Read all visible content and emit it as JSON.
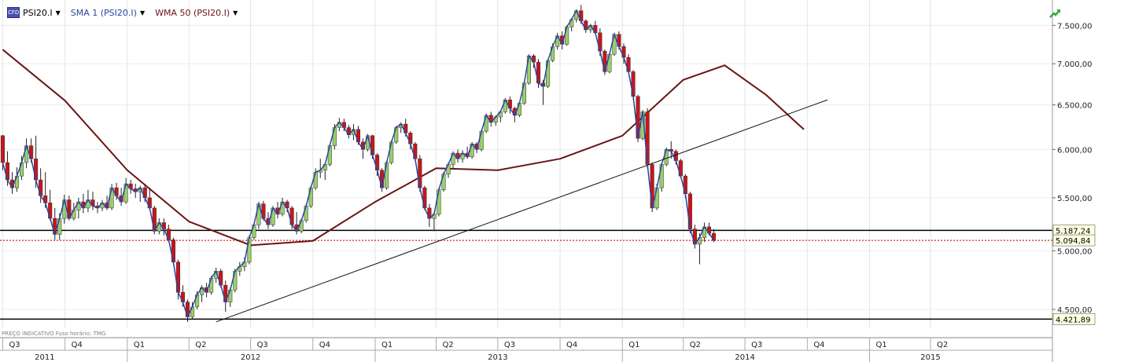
{
  "header": {
    "symbol": "PSI20.I",
    "indicator1": "SMA 1 (PSI20.I)",
    "indicator2": "WMA 50 (PSI20.I)",
    "symbol_icon": "chart-symbol-icon",
    "dropdown_icon": "triangle-down-icon",
    "trend_icon": "trend-up-arrow-icon"
  },
  "footnote": "PREÇO INDICATIVO   Fuso horário: TMG",
  "colors": {
    "up": "#98d06a",
    "down": "#c8151b",
    "sma": "#2a45a0",
    "wma": "#6b1414",
    "level_line": "#000000",
    "last_line": "#e02020"
  },
  "chart_data": {
    "type": "candlestick",
    "y_scale": "log",
    "ylim": [
      4350,
      7850
    ],
    "y_ticks": [
      "4.500,00",
      "5.000,00",
      "5.500,00",
      "6.000,00",
      "6.500,00",
      "7.000,00",
      "7.500,00"
    ],
    "y_tick_values": [
      4500,
      5000,
      5500,
      6000,
      6500,
      7000,
      7500
    ],
    "x_range": [
      "2011-06-27",
      "2015-09-28"
    ],
    "quarter_labels": [
      {
        "label": "Q3",
        "date": "2011-07-01"
      },
      {
        "label": "Q4",
        "date": "2011-10-01"
      },
      {
        "label": "Q1",
        "date": "2012-01-01"
      },
      {
        "label": "Q2",
        "date": "2012-04-01"
      },
      {
        "label": "Q3",
        "date": "2012-07-01"
      },
      {
        "label": "Q4",
        "date": "2012-10-01"
      },
      {
        "label": "Q1",
        "date": "2013-01-01"
      },
      {
        "label": "Q2",
        "date": "2013-04-01"
      },
      {
        "label": "Q3",
        "date": "2013-07-01"
      },
      {
        "label": "Q4",
        "date": "2013-10-01"
      },
      {
        "label": "Q1",
        "date": "2014-01-01"
      },
      {
        "label": "Q2",
        "date": "2014-04-01"
      },
      {
        "label": "Q3",
        "date": "2014-07-01"
      },
      {
        "label": "Q4",
        "date": "2014-10-01"
      },
      {
        "label": "Q1",
        "date": "2015-01-01"
      },
      {
        "label": "Q2",
        "date": "2015-04-01"
      }
    ],
    "year_labels": [
      {
        "label": "2011",
        "date": "2011-09-01"
      },
      {
        "label": "2012",
        "date": "2012-07-01"
      },
      {
        "label": "2013",
        "date": "2013-07-01"
      },
      {
        "label": "2014",
        "date": "2014-07-01"
      },
      {
        "label": "2015",
        "date": "2015-04-01"
      }
    ],
    "horizontal_levels": [
      {
        "value": 5187.24,
        "label": "5.187,24",
        "style": "solid"
      },
      {
        "value": 5094.84,
        "label": "5.094,84",
        "style": "dotted"
      },
      {
        "value": 4421.89,
        "label": "4.421,89",
        "style": "solid"
      }
    ],
    "trendline": {
      "from": {
        "date": "2012-05-11",
        "value": 4400
      },
      "to": {
        "date": "2014-10-31",
        "value": 6560
      }
    },
    "wma_50": {
      "dates": [
        "2011-07-01",
        "2011-10-01",
        "2012-01-01",
        "2012-04-01",
        "2012-07-01",
        "2012-10-01",
        "2013-01-01",
        "2013-04-01",
        "2013-07-01",
        "2013-10-01",
        "2014-01-01",
        "2014-04-01",
        "2014-06-01",
        "2014-08-01",
        "2014-09-26"
      ],
      "values": [
        7180,
        6550,
        5780,
        5270,
        5050,
        5090,
        5460,
        5800,
        5780,
        5900,
        6150,
        6800,
        6980,
        6620,
        6220
      ]
    },
    "sma_1": "close",
    "candles": {
      "start": "2011-07-01",
      "step_days": 7,
      "ohlc": [
        [
          6150,
          6160,
          5780,
          5860
        ],
        [
          5860,
          5980,
          5620,
          5680
        ],
        [
          5680,
          5760,
          5540,
          5600
        ],
        [
          5600,
          5810,
          5560,
          5720
        ],
        [
          5720,
          5930,
          5680,
          5860
        ],
        [
          5860,
          6120,
          5800,
          6040
        ],
        [
          6040,
          6120,
          5860,
          5900
        ],
        [
          5900,
          6150,
          5600,
          5680
        ],
        [
          5680,
          5800,
          5450,
          5520
        ],
        [
          5520,
          5760,
          5400,
          5450
        ],
        [
          5450,
          5580,
          5280,
          5300
        ],
        [
          5300,
          5400,
          5100,
          5150
        ],
        [
          5150,
          5350,
          5100,
          5300
        ],
        [
          5300,
          5530,
          5250,
          5480
        ],
        [
          5480,
          5520,
          5280,
          5300
        ],
        [
          5300,
          5450,
          5280,
          5380
        ],
        [
          5380,
          5500,
          5300,
          5460
        ],
        [
          5460,
          5540,
          5350,
          5400
        ],
        [
          5400,
          5580,
          5360,
          5480
        ],
        [
          5480,
          5560,
          5380,
          5420
        ],
        [
          5420,
          5460,
          5350,
          5400
        ],
        [
          5400,
          5480,
          5370,
          5450
        ],
        [
          5450,
          5520,
          5380,
          5400
        ],
        [
          5400,
          5640,
          5380,
          5600
        ],
        [
          5600,
          5650,
          5480,
          5520
        ],
        [
          5520,
          5600,
          5420,
          5460
        ],
        [
          5460,
          5700,
          5440,
          5640
        ],
        [
          5640,
          5680,
          5540,
          5590
        ],
        [
          5590,
          5640,
          5500,
          5560
        ],
        [
          5560,
          5620,
          5460,
          5600
        ],
        [
          5600,
          5640,
          5460,
          5500
        ],
        [
          5500,
          5600,
          5380,
          5400
        ],
        [
          5400,
          5420,
          5150,
          5180
        ],
        [
          5180,
          5300,
          5150,
          5260
        ],
        [
          5260,
          5300,
          5140,
          5200
        ],
        [
          5200,
          5240,
          5080,
          5100
        ],
        [
          5100,
          5120,
          4880,
          4900
        ],
        [
          4900,
          4920,
          4580,
          4640
        ],
        [
          4640,
          4700,
          4520,
          4560
        ],
        [
          4560,
          4580,
          4400,
          4440
        ],
        [
          4440,
          4560,
          4420,
          4520
        ],
        [
          4520,
          4650,
          4500,
          4620
        ],
        [
          4620,
          4700,
          4560,
          4680
        ],
        [
          4680,
          4720,
          4600,
          4640
        ],
        [
          4640,
          4780,
          4620,
          4760
        ],
        [
          4760,
          4850,
          4720,
          4820
        ],
        [
          4820,
          4840,
          4680,
          4700
        ],
        [
          4700,
          4740,
          4480,
          4560
        ],
        [
          4560,
          4680,
          4520,
          4660
        ],
        [
          4660,
          4840,
          4640,
          4820
        ],
        [
          4820,
          4900,
          4780,
          4860
        ],
        [
          4860,
          4940,
          4820,
          4900
        ],
        [
          4900,
          5140,
          4880,
          5120
        ],
        [
          5120,
          5260,
          5100,
          5240
        ],
        [
          5240,
          5460,
          5200,
          5440
        ],
        [
          5440,
          5470,
          5280,
          5300
        ],
        [
          5300,
          5360,
          5200,
          5240
        ],
        [
          5240,
          5420,
          5220,
          5400
        ],
        [
          5400,
          5460,
          5300,
          5340
        ],
        [
          5340,
          5500,
          5320,
          5460
        ],
        [
          5460,
          5480,
          5360,
          5400
        ],
        [
          5400,
          5420,
          5200,
          5240
        ],
        [
          5240,
          5360,
          5150,
          5180
        ],
        [
          5180,
          5300,
          5160,
          5280
        ],
        [
          5280,
          5440,
          5260,
          5420
        ],
        [
          5420,
          5620,
          5400,
          5600
        ],
        [
          5600,
          5800,
          5580,
          5760
        ],
        [
          5760,
          5900,
          5700,
          5780
        ],
        [
          5780,
          5860,
          5680,
          5840
        ],
        [
          5840,
          6060,
          5820,
          6040
        ],
        [
          6040,
          6280,
          6000,
          6240
        ],
        [
          6240,
          6350,
          6200,
          6300
        ],
        [
          6300,
          6340,
          6200,
          6240
        ],
        [
          6240,
          6270,
          6120,
          6160
        ],
        [
          6160,
          6280,
          6100,
          6220
        ],
        [
          6220,
          6260,
          6050,
          6080
        ],
        [
          6080,
          6120,
          5900,
          6000
        ],
        [
          6000,
          6170,
          5980,
          6150
        ],
        [
          6150,
          6160,
          5900,
          5940
        ],
        [
          5940,
          5960,
          5720,
          5780
        ],
        [
          5780,
          5800,
          5560,
          5600
        ],
        [
          5600,
          5880,
          5580,
          5860
        ],
        [
          5860,
          6100,
          5840,
          6080
        ],
        [
          6080,
          6260,
          6060,
          6240
        ],
        [
          6240,
          6300,
          6180,
          6280
        ],
        [
          6280,
          6340,
          6140,
          6180
        ],
        [
          6180,
          6200,
          6000,
          6060
        ],
        [
          6060,
          6080,
          5880,
          5900
        ],
        [
          5900,
          5940,
          5560,
          5600
        ],
        [
          5600,
          5620,
          5380,
          5400
        ],
        [
          5400,
          5440,
          5220,
          5300
        ],
        [
          5300,
          5360,
          5180,
          5340
        ],
        [
          5340,
          5600,
          5320,
          5580
        ],
        [
          5580,
          5760,
          5560,
          5740
        ],
        [
          5740,
          5860,
          5700,
          5840
        ],
        [
          5840,
          5980,
          5800,
          5960
        ],
        [
          5960,
          6000,
          5860,
          5900
        ],
        [
          5900,
          5990,
          5860,
          5960
        ],
        [
          5960,
          6030,
          5900,
          5920
        ],
        [
          5920,
          6080,
          5900,
          6060
        ],
        [
          6060,
          6080,
          5960,
          6000
        ],
        [
          6000,
          6220,
          5980,
          6200
        ],
        [
          6200,
          6400,
          6180,
          6380
        ],
        [
          6380,
          6420,
          6250,
          6300
        ],
        [
          6300,
          6380,
          6260,
          6360
        ],
        [
          6360,
          6440,
          6300,
          6420
        ],
        [
          6420,
          6580,
          6400,
          6560
        ],
        [
          6560,
          6600,
          6400,
          6460
        ],
        [
          6460,
          6480,
          6300,
          6380
        ],
        [
          6380,
          6540,
          6360,
          6520
        ],
        [
          6520,
          6780,
          6500,
          6760
        ],
        [
          6760,
          7120,
          6740,
          7100
        ],
        [
          7100,
          7120,
          6950,
          7020
        ],
        [
          7020,
          7060,
          6700,
          6760
        ],
        [
          6760,
          6800,
          6500,
          6720
        ],
        [
          6720,
          7060,
          6700,
          7040
        ],
        [
          7040,
          7260,
          7020,
          7220
        ],
        [
          7220,
          7400,
          7180,
          7360
        ],
        [
          7360,
          7420,
          7180,
          7250
        ],
        [
          7250,
          7500,
          7230,
          7480
        ],
        [
          7480,
          7600,
          7420,
          7580
        ],
        [
          7580,
          7720,
          7540,
          7700
        ],
        [
          7700,
          7780,
          7520,
          7560
        ],
        [
          7560,
          7580,
          7400,
          7440
        ],
        [
          7440,
          7520,
          7400,
          7500
        ],
        [
          7500,
          7560,
          7380,
          7400
        ],
        [
          7400,
          7460,
          7100,
          7160
        ],
        [
          7160,
          7180,
          6860,
          6900
        ],
        [
          6900,
          7140,
          6880,
          7120
        ],
        [
          7120,
          7400,
          7100,
          7380
        ],
        [
          7380,
          7420,
          7180,
          7220
        ],
        [
          7220,
          7260,
          7000,
          7080
        ],
        [
          7080,
          7120,
          6880,
          6900
        ],
        [
          6900,
          6920,
          6560,
          6600
        ],
        [
          6600,
          6620,
          6080,
          6120
        ],
        [
          6120,
          6440,
          6100,
          6420
        ],
        [
          6420,
          6460,
          5800,
          5840
        ],
        [
          5840,
          5860,
          5360,
          5400
        ],
        [
          5400,
          5640,
          5380,
          5600
        ],
        [
          5600,
          5860,
          5560,
          5840
        ],
        [
          5840,
          6020,
          5820,
          6000
        ],
        [
          6000,
          6090,
          5900,
          5980
        ],
        [
          5980,
          6000,
          5840,
          5880
        ],
        [
          5880,
          5900,
          5700,
          5720
        ],
        [
          5720,
          5740,
          5500,
          5540
        ],
        [
          5540,
          5560,
          5160,
          5200
        ],
        [
          5200,
          5240,
          5020,
          5060
        ],
        [
          5060,
          5160,
          4880,
          5120
        ],
        [
          5120,
          5260,
          5080,
          5220
        ],
        [
          5220,
          5260,
          5140,
          5160
        ],
        [
          5160,
          5200,
          5080,
          5094.84
        ]
      ]
    }
  }
}
